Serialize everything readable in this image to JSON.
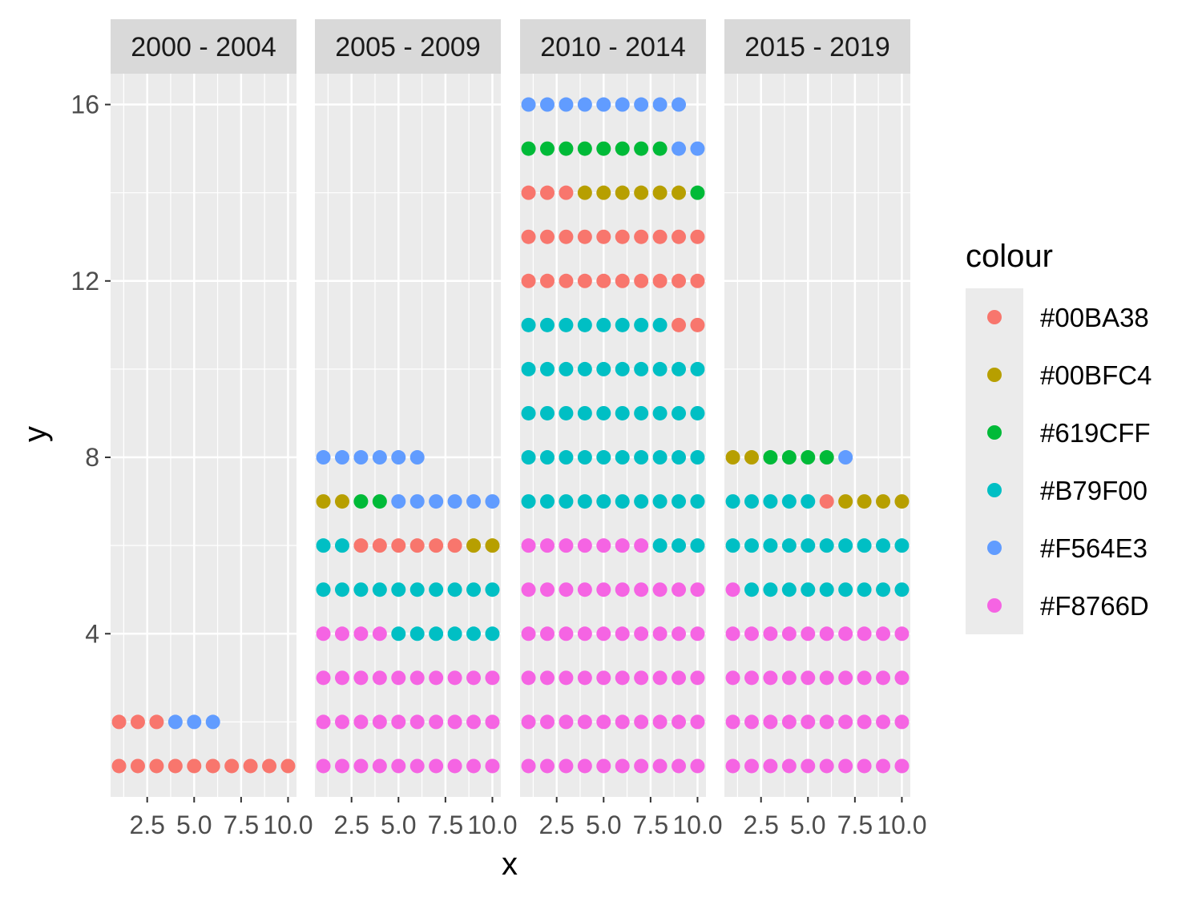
{
  "chart_data": {
    "type": "scatter",
    "xlabel": "x",
    "ylabel": "y",
    "xlim": [
      0.55,
      10.45
    ],
    "ylim": [
      0.3,
      16.7
    ],
    "x_ticks": [
      2.5,
      5.0,
      7.5,
      10.0
    ],
    "x_tick_labels": [
      "2.5",
      "5.0",
      "7.5",
      "10.0"
    ],
    "y_ticks": [
      4,
      8,
      12,
      16
    ],
    "y_tick_labels": [
      "4",
      "8",
      "12",
      "16"
    ],
    "grid": true,
    "legend_position": "right",
    "legend": {
      "title": "colour",
      "entries": [
        {
          "label": "#00BA38",
          "color": "#F8766D"
        },
        {
          "label": "#00BFC4",
          "color": "#B79F00"
        },
        {
          "label": "#619CFF",
          "color": "#00BA38"
        },
        {
          "label": "#B79F00",
          "color": "#00BFC4"
        },
        {
          "label": "#F564E3",
          "color": "#619CFF"
        },
        {
          "label": "#F8766D",
          "color": "#F564E3"
        }
      ]
    },
    "facets": [
      {
        "label": "2000 - 2004",
        "rows": [
          {
            "y": 1,
            "colors": [
              "#F8766D",
              "#F8766D",
              "#F8766D",
              "#F8766D",
              "#F8766D",
              "#F8766D",
              "#F8766D",
              "#F8766D",
              "#F8766D",
              "#F8766D"
            ]
          },
          {
            "y": 2,
            "colors": [
              "#F8766D",
              "#F8766D",
              "#F8766D",
              "#619CFF",
              "#619CFF",
              "#619CFF"
            ]
          }
        ]
      },
      {
        "label": "2005 - 2009",
        "rows": [
          {
            "y": 1,
            "colors": [
              "#F564E3",
              "#F564E3",
              "#F564E3",
              "#F564E3",
              "#F564E3",
              "#F564E3",
              "#F564E3",
              "#F564E3",
              "#F564E3",
              "#F564E3"
            ]
          },
          {
            "y": 2,
            "colors": [
              "#F564E3",
              "#F564E3",
              "#F564E3",
              "#F564E3",
              "#F564E3",
              "#F564E3",
              "#F564E3",
              "#F564E3",
              "#F564E3",
              "#F564E3"
            ]
          },
          {
            "y": 3,
            "colors": [
              "#F564E3",
              "#F564E3",
              "#F564E3",
              "#F564E3",
              "#F564E3",
              "#F564E3",
              "#F564E3",
              "#F564E3",
              "#F564E3",
              "#F564E3"
            ]
          },
          {
            "y": 4,
            "colors": [
              "#F564E3",
              "#F564E3",
              "#F564E3",
              "#F564E3",
              "#00BFC4",
              "#00BFC4",
              "#00BFC4",
              "#00BFC4",
              "#00BFC4",
              "#00BFC4"
            ]
          },
          {
            "y": 5,
            "colors": [
              "#00BFC4",
              "#00BFC4",
              "#00BFC4",
              "#00BFC4",
              "#00BFC4",
              "#00BFC4",
              "#00BFC4",
              "#00BFC4",
              "#00BFC4",
              "#00BFC4"
            ]
          },
          {
            "y": 6,
            "colors": [
              "#00BFC4",
              "#00BFC4",
              "#F8766D",
              "#F8766D",
              "#F8766D",
              "#F8766D",
              "#F8766D",
              "#F8766D",
              "#B79F00",
              "#B79F00"
            ]
          },
          {
            "y": 7,
            "colors": [
              "#B79F00",
              "#B79F00",
              "#00BA38",
              "#00BA38",
              "#619CFF",
              "#619CFF",
              "#619CFF",
              "#619CFF",
              "#619CFF",
              "#619CFF"
            ]
          },
          {
            "y": 8,
            "colors": [
              "#619CFF",
              "#619CFF",
              "#619CFF",
              "#619CFF",
              "#619CFF",
              "#619CFF"
            ]
          }
        ]
      },
      {
        "label": "2010 - 2014",
        "rows": [
          {
            "y": 1,
            "colors": [
              "#F564E3",
              "#F564E3",
              "#F564E3",
              "#F564E3",
              "#F564E3",
              "#F564E3",
              "#F564E3",
              "#F564E3",
              "#F564E3",
              "#F564E3"
            ]
          },
          {
            "y": 2,
            "colors": [
              "#F564E3",
              "#F564E3",
              "#F564E3",
              "#F564E3",
              "#F564E3",
              "#F564E3",
              "#F564E3",
              "#F564E3",
              "#F564E3",
              "#F564E3"
            ]
          },
          {
            "y": 3,
            "colors": [
              "#F564E3",
              "#F564E3",
              "#F564E3",
              "#F564E3",
              "#F564E3",
              "#F564E3",
              "#F564E3",
              "#F564E3",
              "#F564E3",
              "#F564E3"
            ]
          },
          {
            "y": 4,
            "colors": [
              "#F564E3",
              "#F564E3",
              "#F564E3",
              "#F564E3",
              "#F564E3",
              "#F564E3",
              "#F564E3",
              "#F564E3",
              "#F564E3",
              "#F564E3"
            ]
          },
          {
            "y": 5,
            "colors": [
              "#F564E3",
              "#F564E3",
              "#F564E3",
              "#F564E3",
              "#F564E3",
              "#F564E3",
              "#F564E3",
              "#F564E3",
              "#F564E3",
              "#F564E3"
            ]
          },
          {
            "y": 6,
            "colors": [
              "#F564E3",
              "#F564E3",
              "#F564E3",
              "#F564E3",
              "#F564E3",
              "#F564E3",
              "#F564E3",
              "#00BFC4",
              "#00BFC4",
              "#00BFC4"
            ]
          },
          {
            "y": 7,
            "colors": [
              "#00BFC4",
              "#00BFC4",
              "#00BFC4",
              "#00BFC4",
              "#00BFC4",
              "#00BFC4",
              "#00BFC4",
              "#00BFC4",
              "#00BFC4",
              "#00BFC4"
            ]
          },
          {
            "y": 8,
            "colors": [
              "#00BFC4",
              "#00BFC4",
              "#00BFC4",
              "#00BFC4",
              "#00BFC4",
              "#00BFC4",
              "#00BFC4",
              "#00BFC4",
              "#00BFC4",
              "#00BFC4"
            ]
          },
          {
            "y": 9,
            "colors": [
              "#00BFC4",
              "#00BFC4",
              "#00BFC4",
              "#00BFC4",
              "#00BFC4",
              "#00BFC4",
              "#00BFC4",
              "#00BFC4",
              "#00BFC4",
              "#00BFC4"
            ]
          },
          {
            "y": 10,
            "colors": [
              "#00BFC4",
              "#00BFC4",
              "#00BFC4",
              "#00BFC4",
              "#00BFC4",
              "#00BFC4",
              "#00BFC4",
              "#00BFC4",
              "#00BFC4",
              "#00BFC4"
            ]
          },
          {
            "y": 11,
            "colors": [
              "#00BFC4",
              "#00BFC4",
              "#00BFC4",
              "#00BFC4",
              "#00BFC4",
              "#00BFC4",
              "#00BFC4",
              "#00BFC4",
              "#F8766D",
              "#F8766D"
            ]
          },
          {
            "y": 12,
            "colors": [
              "#F8766D",
              "#F8766D",
              "#F8766D",
              "#F8766D",
              "#F8766D",
              "#F8766D",
              "#F8766D",
              "#F8766D",
              "#F8766D",
              "#F8766D"
            ]
          },
          {
            "y": 13,
            "colors": [
              "#F8766D",
              "#F8766D",
              "#F8766D",
              "#F8766D",
              "#F8766D",
              "#F8766D",
              "#F8766D",
              "#F8766D",
              "#F8766D",
              "#F8766D"
            ]
          },
          {
            "y": 14,
            "colors": [
              "#F8766D",
              "#F8766D",
              "#F8766D",
              "#B79F00",
              "#B79F00",
              "#B79F00",
              "#B79F00",
              "#B79F00",
              "#B79F00",
              "#00BA38"
            ]
          },
          {
            "y": 15,
            "colors": [
              "#00BA38",
              "#00BA38",
              "#00BA38",
              "#00BA38",
              "#00BA38",
              "#00BA38",
              "#00BA38",
              "#00BA38",
              "#619CFF",
              "#619CFF"
            ]
          },
          {
            "y": 16,
            "colors": [
              "#619CFF",
              "#619CFF",
              "#619CFF",
              "#619CFF",
              "#619CFF",
              "#619CFF",
              "#619CFF",
              "#619CFF",
              "#619CFF"
            ]
          }
        ]
      },
      {
        "label": "2015 - 2019",
        "rows": [
          {
            "y": 1,
            "colors": [
              "#F564E3",
              "#F564E3",
              "#F564E3",
              "#F564E3",
              "#F564E3",
              "#F564E3",
              "#F564E3",
              "#F564E3",
              "#F564E3",
              "#F564E3"
            ]
          },
          {
            "y": 2,
            "colors": [
              "#F564E3",
              "#F564E3",
              "#F564E3",
              "#F564E3",
              "#F564E3",
              "#F564E3",
              "#F564E3",
              "#F564E3",
              "#F564E3",
              "#F564E3"
            ]
          },
          {
            "y": 3,
            "colors": [
              "#F564E3",
              "#F564E3",
              "#F564E3",
              "#F564E3",
              "#F564E3",
              "#F564E3",
              "#F564E3",
              "#F564E3",
              "#F564E3",
              "#F564E3"
            ]
          },
          {
            "y": 4,
            "colors": [
              "#F564E3",
              "#F564E3",
              "#F564E3",
              "#F564E3",
              "#F564E3",
              "#F564E3",
              "#F564E3",
              "#F564E3",
              "#F564E3",
              "#F564E3"
            ]
          },
          {
            "y": 5,
            "colors": [
              "#F564E3",
              "#00BFC4",
              "#00BFC4",
              "#00BFC4",
              "#00BFC4",
              "#00BFC4",
              "#00BFC4",
              "#00BFC4",
              "#00BFC4",
              "#00BFC4"
            ]
          },
          {
            "y": 6,
            "colors": [
              "#00BFC4",
              "#00BFC4",
              "#00BFC4",
              "#00BFC4",
              "#00BFC4",
              "#00BFC4",
              "#00BFC4",
              "#00BFC4",
              "#00BFC4",
              "#00BFC4"
            ]
          },
          {
            "y": 7,
            "colors": [
              "#00BFC4",
              "#00BFC4",
              "#00BFC4",
              "#00BFC4",
              "#00BFC4",
              "#F8766D",
              "#B79F00",
              "#B79F00",
              "#B79F00",
              "#B79F00"
            ]
          },
          {
            "y": 8,
            "colors": [
              "#B79F00",
              "#B79F00",
              "#00BA38",
              "#00BA38",
              "#00BA38",
              "#00BA38",
              "#619CFF"
            ]
          }
        ]
      }
    ]
  }
}
